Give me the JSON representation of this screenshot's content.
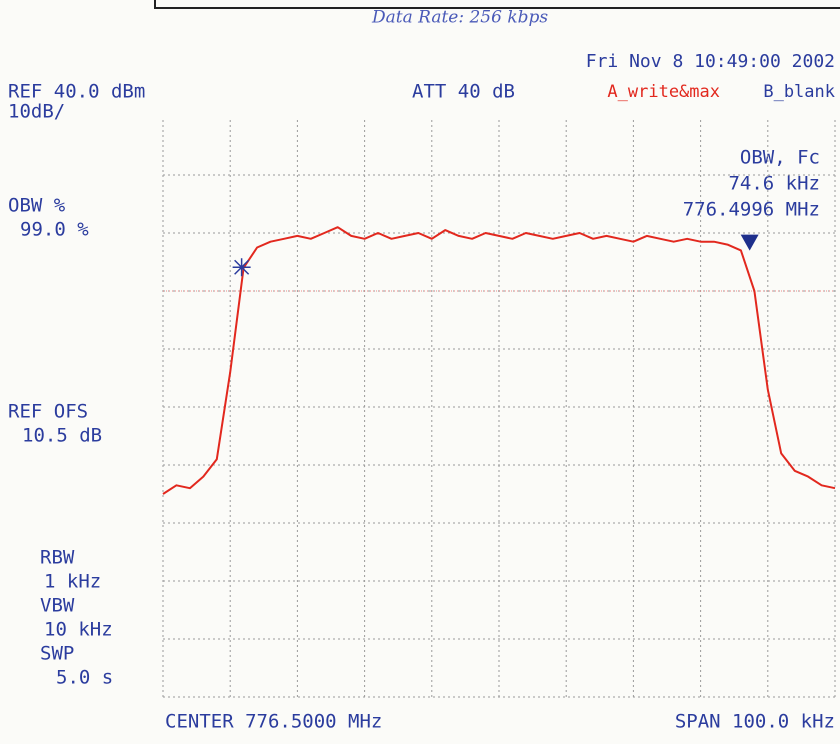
{
  "chart_data": {
    "type": "line",
    "note_handwritten": "Data Rate: 256 kbps",
    "timestamp": "Fri Nov  8 10:49:00 2002",
    "ref_label": "REF 40.0 dBm",
    "scale_label": "10dB/",
    "att_label": "ATT 40 dB",
    "trace_a_label": "A_write&max",
    "trace_b_label": "B_blank",
    "obw_fc_title": "OBW, Fc",
    "obw_value": "74.6 kHz",
    "fc_value": "776.4996 MHz",
    "obw_pct_title": "OBW %",
    "obw_pct_value": "99.0 %",
    "ref_ofs_title": "REF OFS",
    "ref_ofs_value": "10.5 dB",
    "rbw_title": "RBW",
    "rbw_value": "1 kHz",
    "vbw_title": "VBW",
    "vbw_value": "10 kHz",
    "swp_title": "SWP",
    "swp_value": "5.0 s",
    "center_label": "CENTER 776.5000 MHz",
    "span_label": "SPAN 100.0 kHz",
    "xlim": [
      -50,
      50
    ],
    "ylim": [
      -50,
      40
    ],
    "grid": true,
    "series": [
      {
        "name": "A_write&max",
        "color": "#e2281e",
        "x": [
          -50,
          -48,
          -46,
          -44,
          -42,
          -40,
          -38,
          -36,
          -34,
          -32,
          -30,
          -28,
          -26,
          -24,
          -22,
          -20,
          -18,
          -16,
          -14,
          -12,
          -10,
          -8,
          -6,
          -4,
          -2,
          0,
          2,
          4,
          6,
          8,
          10,
          12,
          14,
          16,
          18,
          20,
          22,
          24,
          26,
          28,
          30,
          32,
          34,
          36,
          38,
          40,
          42,
          44,
          46,
          48,
          50
        ],
        "values": [
          -15,
          -13.5,
          -14,
          -12,
          -9,
          6,
          24,
          27.5,
          28.5,
          29,
          29.5,
          29,
          30,
          31,
          29.5,
          29,
          30,
          29,
          29.5,
          30,
          29,
          30.5,
          29.5,
          29,
          30,
          29.5,
          29,
          30,
          29.5,
          29,
          29.5,
          30,
          29,
          29.5,
          29,
          28.5,
          29.5,
          29,
          28.5,
          29,
          28.5,
          28.5,
          28,
          27,
          20,
          3,
          -8,
          -11,
          -12,
          -13.5,
          -14
        ]
      }
    ],
    "markers": {
      "x": [
        -38.3,
        37.3
      ],
      "values": [
        24.1,
        28
      ]
    }
  }
}
